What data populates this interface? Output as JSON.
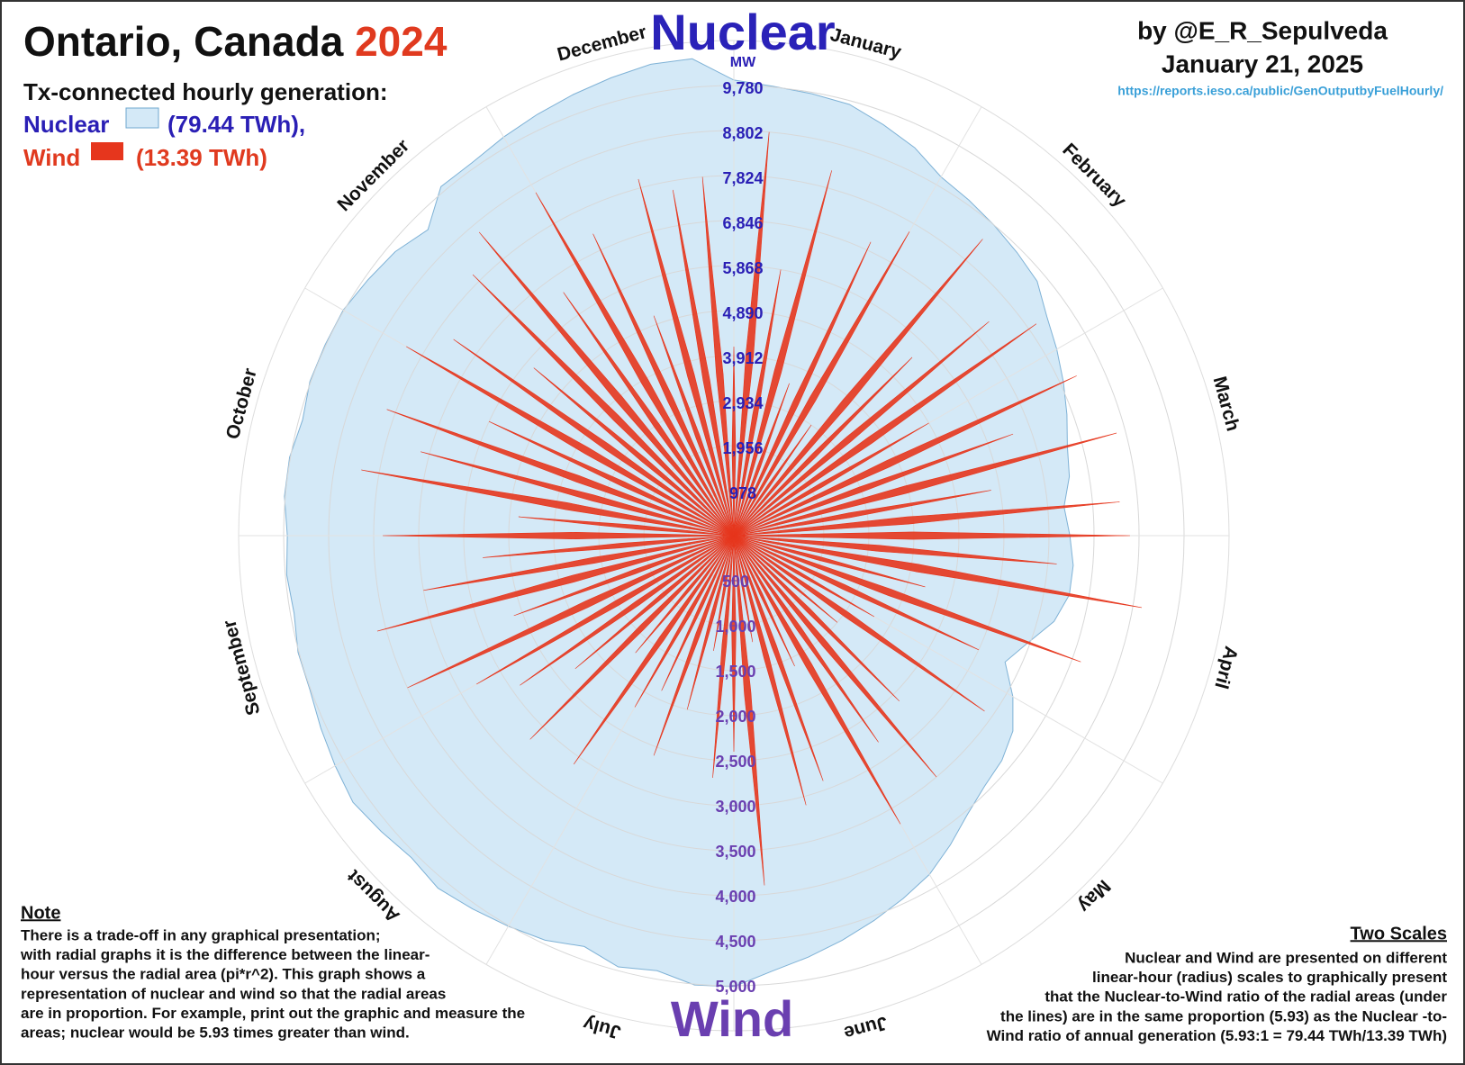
{
  "chart_data": {
    "type": "radial",
    "title": "Ontario, Canada",
    "title_year": "2024",
    "subtitle": "Tx-connected hourly generation:",
    "legend_notes": [
      "(79.44 TWh),",
      "(13.39 TWh)"
    ],
    "author": "by @E_R_Sepulveda",
    "date": "January 21, 2025",
    "source": "https://reports.ieso.ca/public/GenOutputbyFuelHourly/",
    "unit": "MW",
    "categories": [
      null,
      null,
      null,
      "January",
      null,
      null,
      null,
      null,
      null,
      "February",
      null,
      null,
      null,
      null,
      null,
      "March",
      null,
      null,
      null,
      null,
      null,
      "April",
      null,
      null,
      null,
      null,
      null,
      "May",
      null,
      null,
      null,
      null,
      null,
      "June",
      null,
      null,
      null,
      null,
      null,
      "July",
      null,
      null,
      null,
      null,
      null,
      "August",
      null,
      null,
      null,
      null,
      null,
      "September",
      null,
      null,
      null,
      null,
      null,
      "October",
      null,
      null,
      null,
      null,
      null,
      "November",
      null,
      null,
      null,
      null,
      null,
      "December",
      null,
      null
    ],
    "series": [
      {
        "name": "Nuclear",
        "color": "#d4e9f7",
        "values": [
          9900,
          9800,
          9750,
          9700,
          9500,
          9300,
          9000,
          8900,
          8800,
          8700,
          8600,
          8300,
          8100,
          7900,
          7700,
          7500,
          7400,
          7200,
          7300,
          7400,
          7400,
          7200,
          6800,
          6500,
          7000,
          7400,
          7600,
          7700,
          7900,
          8200,
          8500,
          8700,
          8900,
          9100,
          9300,
          9500,
          9800,
          9800,
          9600,
          9700,
          9500,
          9700,
          9800,
          9900,
          10000,
          9900,
          10000,
          10100,
          10000,
          9900,
          9800,
          9800,
          9700,
          9750,
          9700,
          9800,
          9800,
          9700,
          9800,
          9800,
          9800,
          9700,
          9600,
          9400,
          9900,
          9900,
          10000,
          10100,
          10200,
          10300,
          10400,
          10400
        ]
      },
      {
        "name": "Wind",
        "color": "#e6361d",
        "axis": "y2",
        "values": [
          2100,
          4500,
          3000,
          4200,
          1800,
          3600,
          3900,
          1500,
          4300,
          2800,
          3700,
          4100,
          2500,
          4200,
          3300,
          4400,
          2900,
          4300,
          4400,
          3600,
          4600,
          2200,
          4100,
          3000,
          1800,
          3400,
          1500,
          2600,
          3500,
          2800,
          3700,
          1600,
          2900,
          3100,
          1200,
          3900,
          2400,
          2700,
          1300,
          2000,
          2600,
          1900,
          2200,
          3100,
          1700,
          3200,
          2300,
          2900,
          3300,
          4000,
          2600,
          4100,
          3500,
          2800,
          3900,
          2400,
          4200,
          3600,
          4100,
          3000,
          4200,
          3800,
          2900,
          4100,
          4400,
          3300,
          4400,
          3700,
          2600,
          4100,
          3900,
          4000
        ]
      }
    ],
    "ylim": [
      0,
      10758
    ],
    "yticks": [
      978,
      {
        "value": 1956,
        "label": "1,956"
      },
      {
        "value": 2934,
        "label": "2,934"
      },
      {
        "value": 3912,
        "label": "3,912"
      },
      {
        "value": 4890,
        "label": "4,890"
      },
      {
        "value": 5868,
        "label": "5,868"
      },
      {
        "value": 6846,
        "label": "6,846"
      },
      {
        "value": 7824,
        "label": "7,824"
      },
      {
        "value": 8802,
        "label": "8,802"
      },
      {
        "value": 9780,
        "label": "9,780"
      }
    ],
    "y2lim": [
      0,
      5500
    ],
    "y2ticks": [
      500,
      {
        "value": 1000,
        "label": "1,000"
      },
      {
        "value": 1500,
        "label": "1,500"
      },
      {
        "value": 2000,
        "label": "2,000"
      },
      {
        "value": 2500,
        "label": "2,500"
      },
      {
        "value": 3000,
        "label": "3,000"
      },
      {
        "value": 3500,
        "label": "3,500"
      },
      {
        "value": 4000,
        "label": "4,000"
      },
      {
        "value": 4500,
        "label": "4,500"
      },
      {
        "value": 5000,
        "label": "5,000"
      }
    ],
    "grid": true,
    "note_title": "Note",
    "note_lines": [
      "There is a trade-off in any graphical presentation;",
      "with radial graphs it is the difference between the linear-",
      "hour versus the radial area (pi*r^2). This graph shows a",
      "representation of nuclear and wind so that the radial areas",
      "are in proportion. For example, print out the graphic and measure the",
      "areas; nuclear would be 5.93 times greater than wind."
    ],
    "scales_title": "Two Scales",
    "scales_lines": [
      "Nuclear and Wind are presented on different",
      "linear-hour (radius) scales to graphically present",
      "that the Nuclear-to-Wind ratio of the radial areas (under",
      "the lines) are in the same proportion (5.93) as the Nuclear -to-",
      "Wind ratio of annual generation (5.93:1 = 79.44 TWh/13.39 TWh)"
    ]
  }
}
